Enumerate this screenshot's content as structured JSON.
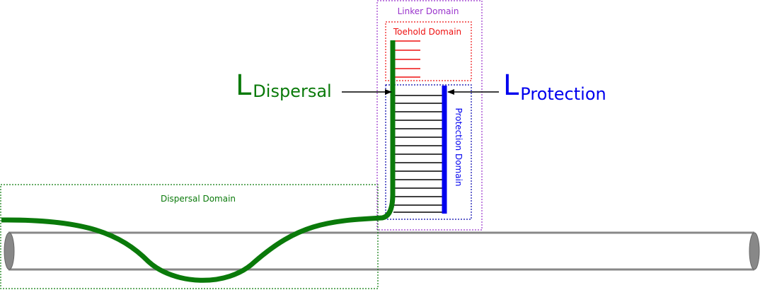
{
  "labels": {
    "linker_domain": "Linker Domain",
    "toehold_domain": "Toehold Domain",
    "protection_domain": "Protection Domain",
    "dispersal_domain": "Dispersal Domain",
    "l_dispersal_main": "L",
    "l_dispersal_sub": "Dispersal",
    "l_protection_main": "L",
    "l_protection_sub": "Protection"
  },
  "colors": {
    "dispersal": "#0a7a0a",
    "protection": "#0000ee",
    "toehold": "#ee1111",
    "linker": "#9933cc",
    "rail": "#888888",
    "rungs": "#000000"
  },
  "counts": {
    "toehold_rungs": 5,
    "protection_rungs": 16
  }
}
